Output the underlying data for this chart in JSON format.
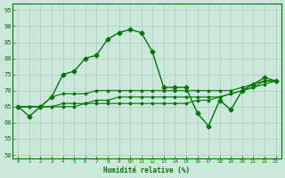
{
  "xlabel": "Humidité relative (%)",
  "background_color": "#cce8dc",
  "grid_color": "#aaccbb",
  "line_color": "#007700",
  "xlim": [
    -0.5,
    23.5
  ],
  "ylim": [
    49,
    97
  ],
  "yticks": [
    50,
    55,
    60,
    65,
    70,
    75,
    80,
    85,
    90,
    95
  ],
  "xticks": [
    0,
    1,
    2,
    3,
    4,
    5,
    6,
    7,
    8,
    9,
    10,
    11,
    12,
    13,
    14,
    15,
    16,
    17,
    18,
    19,
    20,
    21,
    22,
    23
  ],
  "series": [
    [
      65,
      62,
      65,
      68,
      75,
      76,
      80,
      81,
      86,
      88,
      89,
      88,
      82,
      71,
      71,
      71,
      63,
      59,
      67,
      64,
      70,
      72,
      74,
      73
    ],
    [
      65,
      65,
      65,
      68,
      69,
      69,
      69,
      70,
      70,
      70,
      70,
      70,
      70,
      70,
      70,
      70,
      70,
      70,
      70,
      70,
      71,
      72,
      73,
      73
    ],
    [
      65,
      65,
      65,
      65,
      66,
      66,
      66,
      67,
      67,
      68,
      68,
      68,
      68,
      68,
      68,
      68,
      68,
      68,
      68,
      69,
      70,
      71,
      72,
      73
    ],
    [
      65,
      65,
      65,
      65,
      65,
      65,
      66,
      66,
      66,
      66,
      66,
      66,
      66,
      66,
      66,
      66,
      67,
      67,
      68,
      69,
      70,
      71,
      73,
      73
    ]
  ]
}
